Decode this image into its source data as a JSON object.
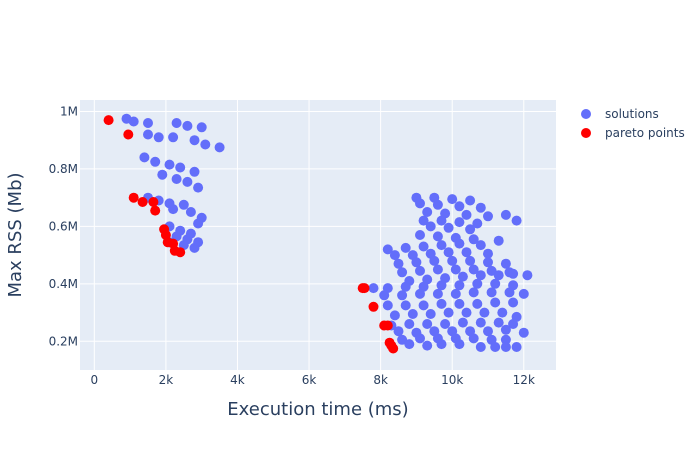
{
  "chart_data": {
    "type": "scatter",
    "title": "",
    "xlabel": "Execution time (ms)",
    "ylabel": "Max RSS (Mb)",
    "xlim": [
      -400,
      12900
    ],
    "ylim": [
      100000,
      1040000
    ],
    "x_ticks": [
      {
        "value": 0,
        "label": "0"
      },
      {
        "value": 2000,
        "label": "2k"
      },
      {
        "value": 4000,
        "label": "4k"
      },
      {
        "value": 6000,
        "label": "6k"
      },
      {
        "value": 8000,
        "label": "8k"
      },
      {
        "value": 10000,
        "label": "10k"
      },
      {
        "value": 12000,
        "label": "12k"
      }
    ],
    "y_ticks": [
      {
        "value": 200000,
        "label": "0.2M"
      },
      {
        "value": 400000,
        "label": "0.4M"
      },
      {
        "value": 600000,
        "label": "0.6M"
      },
      {
        "value": 800000,
        "label": "0.8M"
      },
      {
        "value": 1000000,
        "label": "1M"
      }
    ],
    "grid": true,
    "legend_position": "top-right",
    "series": [
      {
        "name": "solutions",
        "color": "#636efa",
        "points": [
          [
            900,
            975000
          ],
          [
            1100,
            965000
          ],
          [
            1500,
            960000
          ],
          [
            2300,
            960000
          ],
          [
            2600,
            950000
          ],
          [
            3000,
            945000
          ],
          [
            1500,
            920000
          ],
          [
            1800,
            910000
          ],
          [
            2200,
            910000
          ],
          [
            2800,
            900000
          ],
          [
            3100,
            885000
          ],
          [
            3500,
            875000
          ],
          [
            1400,
            840000
          ],
          [
            1700,
            825000
          ],
          [
            2100,
            815000
          ],
          [
            2400,
            805000
          ],
          [
            2800,
            790000
          ],
          [
            1900,
            780000
          ],
          [
            2300,
            765000
          ],
          [
            2600,
            755000
          ],
          [
            2900,
            735000
          ],
          [
            1500,
            700000
          ],
          [
            1800,
            690000
          ],
          [
            2100,
            680000
          ],
          [
            2500,
            675000
          ],
          [
            2200,
            660000
          ],
          [
            2700,
            650000
          ],
          [
            3000,
            630000
          ],
          [
            2900,
            610000
          ],
          [
            2100,
            600000
          ],
          [
            2400,
            585000
          ],
          [
            2700,
            575000
          ],
          [
            2300,
            565000
          ],
          [
            2600,
            555000
          ],
          [
            2900,
            545000
          ],
          [
            2500,
            535000
          ],
          [
            2800,
            525000
          ],
          [
            2100,
            545000
          ],
          [
            9000,
            700000
          ],
          [
            9500,
            700000
          ],
          [
            10000,
            695000
          ],
          [
            10500,
            690000
          ],
          [
            9100,
            680000
          ],
          [
            9600,
            675000
          ],
          [
            10200,
            670000
          ],
          [
            10800,
            665000
          ],
          [
            9300,
            650000
          ],
          [
            9800,
            645000
          ],
          [
            10400,
            640000
          ],
          [
            11000,
            635000
          ],
          [
            11500,
            640000
          ],
          [
            11800,
            620000
          ],
          [
            9200,
            620000
          ],
          [
            9700,
            620000
          ],
          [
            10200,
            615000
          ],
          [
            10700,
            610000
          ],
          [
            9400,
            600000
          ],
          [
            9900,
            595000
          ],
          [
            10500,
            590000
          ],
          [
            9100,
            570000
          ],
          [
            9600,
            565000
          ],
          [
            10100,
            560000
          ],
          [
            10600,
            555000
          ],
          [
            11300,
            550000
          ],
          [
            8200,
            520000
          ],
          [
            8700,
            525000
          ],
          [
            9200,
            530000
          ],
          [
            9700,
            535000
          ],
          [
            10200,
            540000
          ],
          [
            10800,
            535000
          ],
          [
            8400,
            500000
          ],
          [
            8900,
            500000
          ],
          [
            9400,
            505000
          ],
          [
            9900,
            510000
          ],
          [
            10400,
            510000
          ],
          [
            11000,
            505000
          ],
          [
            8500,
            470000
          ],
          [
            9000,
            475000
          ],
          [
            9500,
            480000
          ],
          [
            10000,
            480000
          ],
          [
            10500,
            480000
          ],
          [
            11000,
            475000
          ],
          [
            11500,
            470000
          ],
          [
            8600,
            440000
          ],
          [
            9100,
            445000
          ],
          [
            9600,
            450000
          ],
          [
            10100,
            450000
          ],
          [
            10600,
            450000
          ],
          [
            11100,
            445000
          ],
          [
            11600,
            440000
          ],
          [
            8800,
            410000
          ],
          [
            9300,
            415000
          ],
          [
            9800,
            420000
          ],
          [
            10300,
            425000
          ],
          [
            10800,
            430000
          ],
          [
            11300,
            430000
          ],
          [
            11700,
            435000
          ],
          [
            12100,
            430000
          ],
          [
            7800,
            385000
          ],
          [
            8200,
            385000
          ],
          [
            8700,
            390000
          ],
          [
            9200,
            390000
          ],
          [
            9700,
            395000
          ],
          [
            10200,
            395000
          ],
          [
            10700,
            400000
          ],
          [
            11200,
            400000
          ],
          [
            11700,
            395000
          ],
          [
            8100,
            360000
          ],
          [
            8600,
            360000
          ],
          [
            9100,
            365000
          ],
          [
            9600,
            365000
          ],
          [
            10100,
            365000
          ],
          [
            10600,
            370000
          ],
          [
            11100,
            370000
          ],
          [
            11600,
            370000
          ],
          [
            12000,
            365000
          ],
          [
            8200,
            325000
          ],
          [
            8700,
            325000
          ],
          [
            9200,
            325000
          ],
          [
            9700,
            330000
          ],
          [
            10200,
            330000
          ],
          [
            10700,
            330000
          ],
          [
            11200,
            335000
          ],
          [
            11700,
            335000
          ],
          [
            8400,
            290000
          ],
          [
            8900,
            295000
          ],
          [
            9400,
            295000
          ],
          [
            9900,
            300000
          ],
          [
            10400,
            300000
          ],
          [
            10900,
            300000
          ],
          [
            11400,
            300000
          ],
          [
            11800,
            285000
          ],
          [
            8300,
            255000
          ],
          [
            8800,
            260000
          ],
          [
            9300,
            260000
          ],
          [
            9800,
            260000
          ],
          [
            10300,
            265000
          ],
          [
            10800,
            265000
          ],
          [
            11300,
            265000
          ],
          [
            11700,
            260000
          ],
          [
            8500,
            235000
          ],
          [
            9000,
            230000
          ],
          [
            9500,
            235000
          ],
          [
            10000,
            235000
          ],
          [
            10500,
            235000
          ],
          [
            11000,
            235000
          ],
          [
            11500,
            240000
          ],
          [
            12000,
            230000
          ],
          [
            8600,
            205000
          ],
          [
            9100,
            210000
          ],
          [
            9600,
            210000
          ],
          [
            10100,
            210000
          ],
          [
            10600,
            210000
          ],
          [
            11100,
            205000
          ],
          [
            11500,
            205000
          ],
          [
            8800,
            190000
          ],
          [
            9300,
            185000
          ],
          [
            9700,
            190000
          ],
          [
            10200,
            190000
          ],
          [
            10800,
            180000
          ],
          [
            11200,
            180000
          ],
          [
            11500,
            180000
          ],
          [
            11800,
            180000
          ]
        ]
      },
      {
        "name": "pareto points",
        "color": "#ff0000",
        "points": [
          [
            400,
            970000
          ],
          [
            950,
            920000
          ],
          [
            1100,
            700000
          ],
          [
            1350,
            685000
          ],
          [
            1650,
            685000
          ],
          [
            1700,
            655000
          ],
          [
            1950,
            590000
          ],
          [
            2000,
            570000
          ],
          [
            2050,
            545000
          ],
          [
            2200,
            540000
          ],
          [
            2250,
            515000
          ],
          [
            2400,
            510000
          ],
          [
            7500,
            385000
          ],
          [
            7550,
            385000
          ],
          [
            7800,
            320000
          ],
          [
            8100,
            255000
          ],
          [
            8200,
            255000
          ],
          [
            8250,
            195000
          ],
          [
            8300,
            185000
          ],
          [
            8350,
            175000
          ]
        ]
      }
    ]
  }
}
